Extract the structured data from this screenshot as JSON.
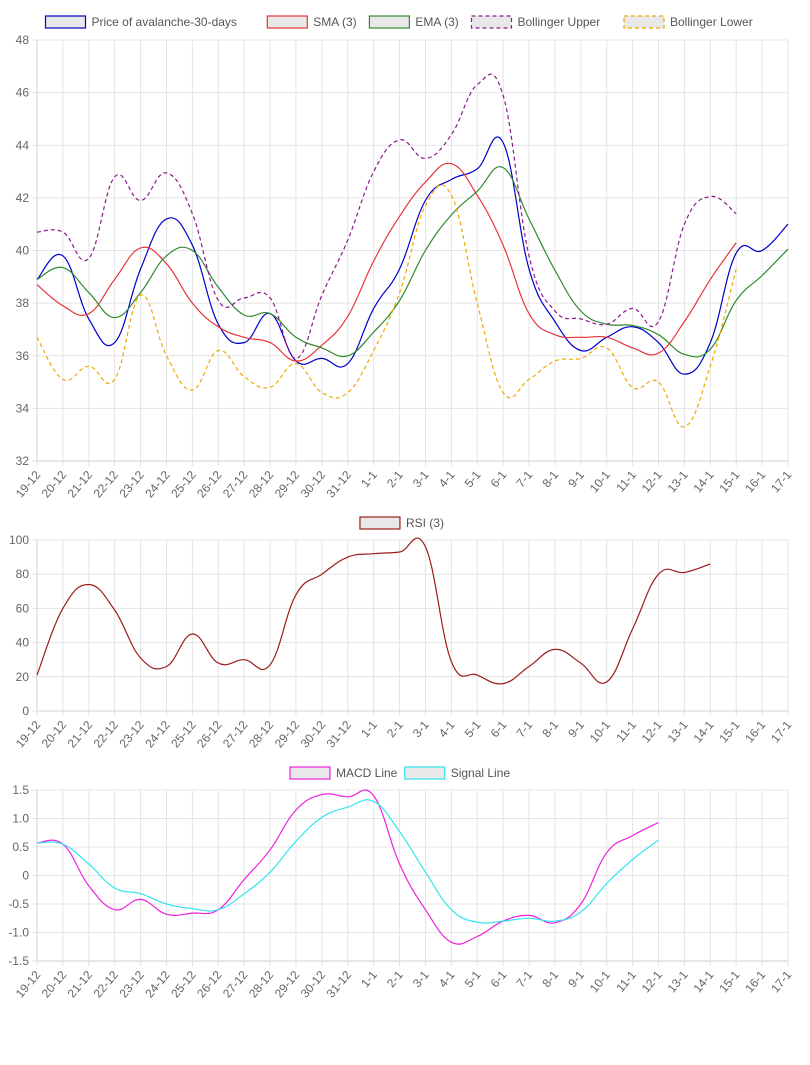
{
  "chart_data": [
    {
      "type": "line",
      "x": [
        "19-12",
        "20-12",
        "21-12",
        "22-12",
        "23-12",
        "24-12",
        "25-12",
        "26-12",
        "27-12",
        "28-12",
        "29-12",
        "30-12",
        "31-12",
        "1-1",
        "2-1",
        "3-1",
        "4-1",
        "5-1",
        "6-1",
        "7-1",
        "8-1",
        "9-1",
        "10-1",
        "11-1",
        "12-1",
        "13-1",
        "14-1",
        "15-1",
        "16-1",
        "17-1"
      ],
      "ylim": [
        32,
        48
      ],
      "yticks": [
        32,
        34,
        36,
        38,
        40,
        42,
        44,
        46,
        48
      ],
      "grid": true,
      "legend": "top",
      "series": [
        {
          "name": "Price of avalanche-30-days",
          "color": "#0000cc",
          "dash": false,
          "values": [
            38.9,
            39.8,
            37.4,
            36.5,
            39.3,
            41.2,
            40.2,
            37.2,
            36.5,
            37.6,
            35.8,
            35.9,
            35.7,
            37.8,
            39.3,
            41.9,
            42.7,
            43.1,
            44.1,
            39.3,
            37.3,
            36.2,
            36.7,
            37.1,
            36.5,
            35.3,
            36.5,
            39.9,
            40.0,
            41.0
          ]
        },
        {
          "name": "SMA (3)",
          "color": "#e8353a",
          "dash": false,
          "values": [
            38.7,
            37.9,
            37.6,
            38.9,
            40.1,
            39.5,
            38.0,
            37.1,
            36.7,
            36.5,
            35.8,
            36.4,
            37.5,
            39.6,
            41.3,
            42.6,
            43.3,
            42.1,
            40.2,
            37.6,
            36.8,
            36.7,
            36.7,
            36.3,
            36.1,
            37.3,
            38.9,
            40.3,
            null,
            null
          ]
        },
        {
          "name": "EMA (3)",
          "color": "#2e8b2e",
          "dash": false,
          "values": [
            38.9,
            39.35,
            38.4,
            37.45,
            38.4,
            39.8,
            40.0,
            38.6,
            37.55,
            37.6,
            36.7,
            36.3,
            36.0,
            36.9,
            38.1,
            40.0,
            41.35,
            42.25,
            43.15,
            41.2,
            39.25,
            37.7,
            37.2,
            37.15,
            36.8,
            36.05,
            36.25,
            38.1,
            39.05,
            40.05
          ]
        },
        {
          "name": "Bollinger Upper",
          "color": "#8b1a8b",
          "dash": true,
          "values": [
            40.7,
            40.7,
            39.7,
            42.8,
            41.9,
            42.95,
            41.4,
            38.1,
            38.2,
            38.2,
            35.9,
            38.3,
            40.4,
            43.0,
            44.2,
            43.5,
            44.4,
            46.3,
            45.9,
            39.8,
            37.7,
            37.4,
            37.2,
            37.8,
            37.3,
            41.0,
            42.05,
            41.4,
            null,
            null
          ]
        },
        {
          "name": "Bollinger Lower",
          "color": "#f0a900",
          "dash": true,
          "values": [
            36.7,
            35.1,
            35.6,
            35.1,
            38.3,
            36.0,
            34.7,
            36.2,
            35.2,
            34.8,
            35.7,
            34.6,
            34.6,
            36.2,
            38.4,
            41.7,
            42.1,
            38.0,
            34.6,
            35.1,
            35.8,
            35.9,
            36.3,
            34.8,
            35.0,
            33.3,
            35.6,
            39.3,
            null,
            null
          ]
        }
      ]
    },
    {
      "type": "line",
      "x": [
        "19-12",
        "20-12",
        "21-12",
        "22-12",
        "23-12",
        "24-12",
        "25-12",
        "26-12",
        "27-12",
        "28-12",
        "29-12",
        "30-12",
        "31-12",
        "1-1",
        "2-1",
        "3-1",
        "4-1",
        "5-1",
        "6-1",
        "7-1",
        "8-1",
        "9-1",
        "10-1",
        "11-1",
        "12-1",
        "13-1",
        "14-1",
        "15-1",
        "16-1",
        "17-1"
      ],
      "ylim": [
        0,
        100
      ],
      "yticks": [
        0,
        20,
        40,
        60,
        80,
        100
      ],
      "grid": true,
      "legend": "top",
      "series": [
        {
          "name": "RSI (3)",
          "color": "#9b1c1c",
          "dash": false,
          "values": [
            21,
            60,
            74,
            59,
            31,
            26,
            45,
            28,
            30,
            27,
            68,
            80,
            90,
            92,
            93,
            96,
            29,
            21,
            16,
            26,
            36,
            28,
            17,
            48,
            80,
            81,
            86,
            null,
            null,
            null
          ]
        }
      ]
    },
    {
      "type": "line",
      "x": [
        "19-12",
        "20-12",
        "21-12",
        "22-12",
        "23-12",
        "24-12",
        "25-12",
        "26-12",
        "27-12",
        "28-12",
        "29-12",
        "30-12",
        "31-12",
        "1-1",
        "2-1",
        "3-1",
        "4-1",
        "5-1",
        "6-1",
        "7-1",
        "8-1",
        "9-1",
        "10-1",
        "11-1",
        "12-1",
        "13-1",
        "14-1",
        "15-1",
        "16-1",
        "17-1"
      ],
      "ylim": [
        -1.5,
        1.5
      ],
      "yticks": [
        -1.5,
        -1.0,
        -0.5,
        0,
        0.5,
        1.0,
        1.5
      ],
      "ytick_labels": [
        "-1.5",
        "-1.0",
        "-0.5",
        "0",
        "0.5",
        "1.0",
        "1.5"
      ],
      "grid": true,
      "legend": "top",
      "series": [
        {
          "name": "MACD Line",
          "color": "#ee22dd",
          "dash": false,
          "values": [
            0.57,
            0.55,
            -0.18,
            -0.6,
            -0.42,
            -0.68,
            -0.66,
            -0.6,
            -0.07,
            0.45,
            1.15,
            1.42,
            1.38,
            1.4,
            0.2,
            -0.6,
            -1.17,
            -1.07,
            -0.8,
            -0.7,
            -0.83,
            -0.5,
            0.4,
            0.7,
            0.93,
            null,
            null,
            null,
            null,
            null
          ]
        },
        {
          "name": "Signal Line",
          "color": "#33e5ee",
          "dash": false,
          "values": [
            0.57,
            0.55,
            0.2,
            -0.22,
            -0.32,
            -0.5,
            -0.58,
            -0.6,
            -0.32,
            0.06,
            0.6,
            1.02,
            1.2,
            1.3,
            0.77,
            0.06,
            -0.6,
            -0.82,
            -0.8,
            -0.75,
            -0.8,
            -0.64,
            -0.14,
            0.28,
            0.62,
            null,
            null,
            null,
            null,
            null
          ]
        }
      ]
    }
  ]
}
